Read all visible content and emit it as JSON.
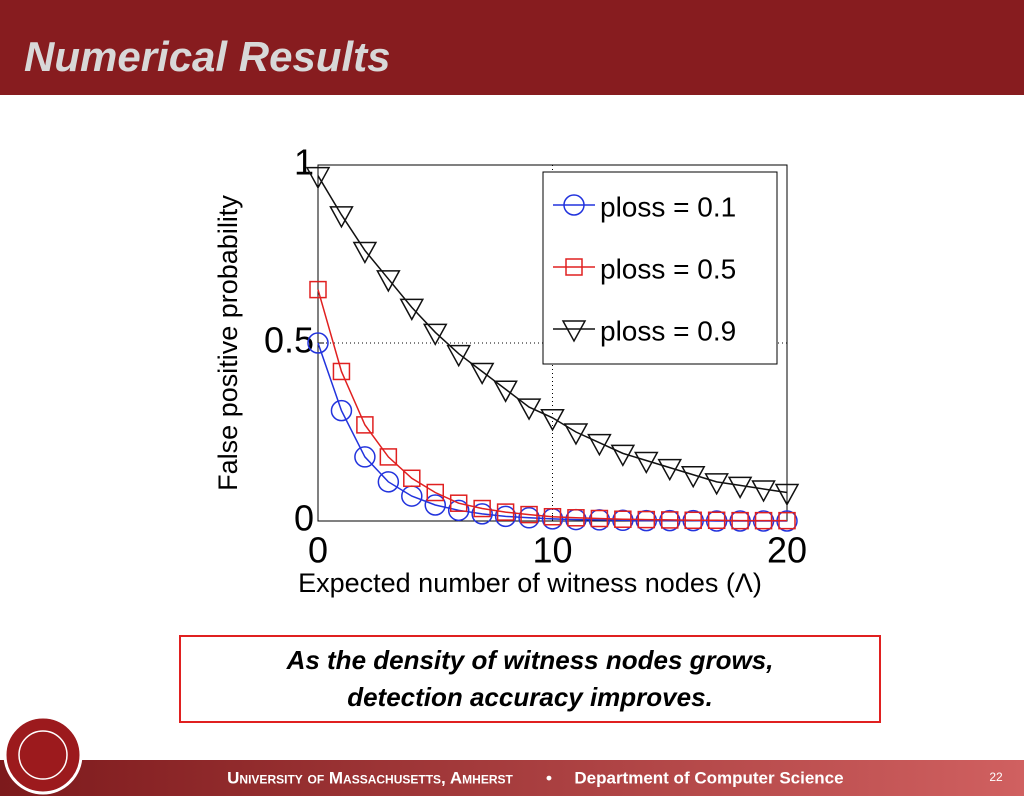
{
  "slide": {
    "title": "Numerical Results",
    "caption": [
      "As the density of witness nodes grows,",
      "detection accuracy improves."
    ],
    "footer": {
      "institution": "University of Massachusetts, Amherst",
      "separator": "•",
      "department": "Department of Computer Science",
      "page": "22"
    }
  },
  "chart_data": {
    "type": "line",
    "x_label": "Expected number of witness nodes (Λ)",
    "y_label": "False positive probability",
    "x": [
      0,
      1,
      2,
      3,
      4,
      5,
      6,
      7,
      8,
      9,
      10,
      11,
      12,
      13,
      14,
      15,
      16,
      17,
      18,
      19,
      20
    ],
    "series": [
      {
        "name": "ploss = 0.1",
        "color": "#2233dd",
        "marker": "circle",
        "values": [
          0.5,
          0.31,
          0.18,
          0.11,
          0.07,
          0.045,
          0.03,
          0.02,
          0.013,
          0.009,
          0.006,
          0.004,
          0.003,
          0.002,
          0.001,
          0.001,
          0.001,
          0,
          0,
          0,
          0
        ]
      },
      {
        "name": "ploss = 0.5",
        "color": "#e02020",
        "marker": "square",
        "values": [
          0.65,
          0.42,
          0.27,
          0.18,
          0.12,
          0.08,
          0.05,
          0.035,
          0.025,
          0.018,
          0.012,
          0.009,
          0.007,
          0.005,
          0.004,
          0.003,
          0.002,
          0.002,
          0.001,
          0.001,
          0.001
        ]
      },
      {
        "name": "ploss = 0.9",
        "color": "#111111",
        "marker": "triangle",
        "values": [
          0.97,
          0.86,
          0.76,
          0.68,
          0.6,
          0.53,
          0.47,
          0.42,
          0.37,
          0.32,
          0.29,
          0.25,
          0.22,
          0.19,
          0.17,
          0.15,
          0.13,
          0.11,
          0.1,
          0.09,
          0.08
        ]
      }
    ],
    "xlim": [
      0,
      20
    ],
    "ylim": [
      0,
      1
    ],
    "xticks": [
      0,
      10,
      20
    ],
    "yticks": [
      0,
      0.5,
      1
    ],
    "grid": true,
    "legend": "upper right"
  }
}
